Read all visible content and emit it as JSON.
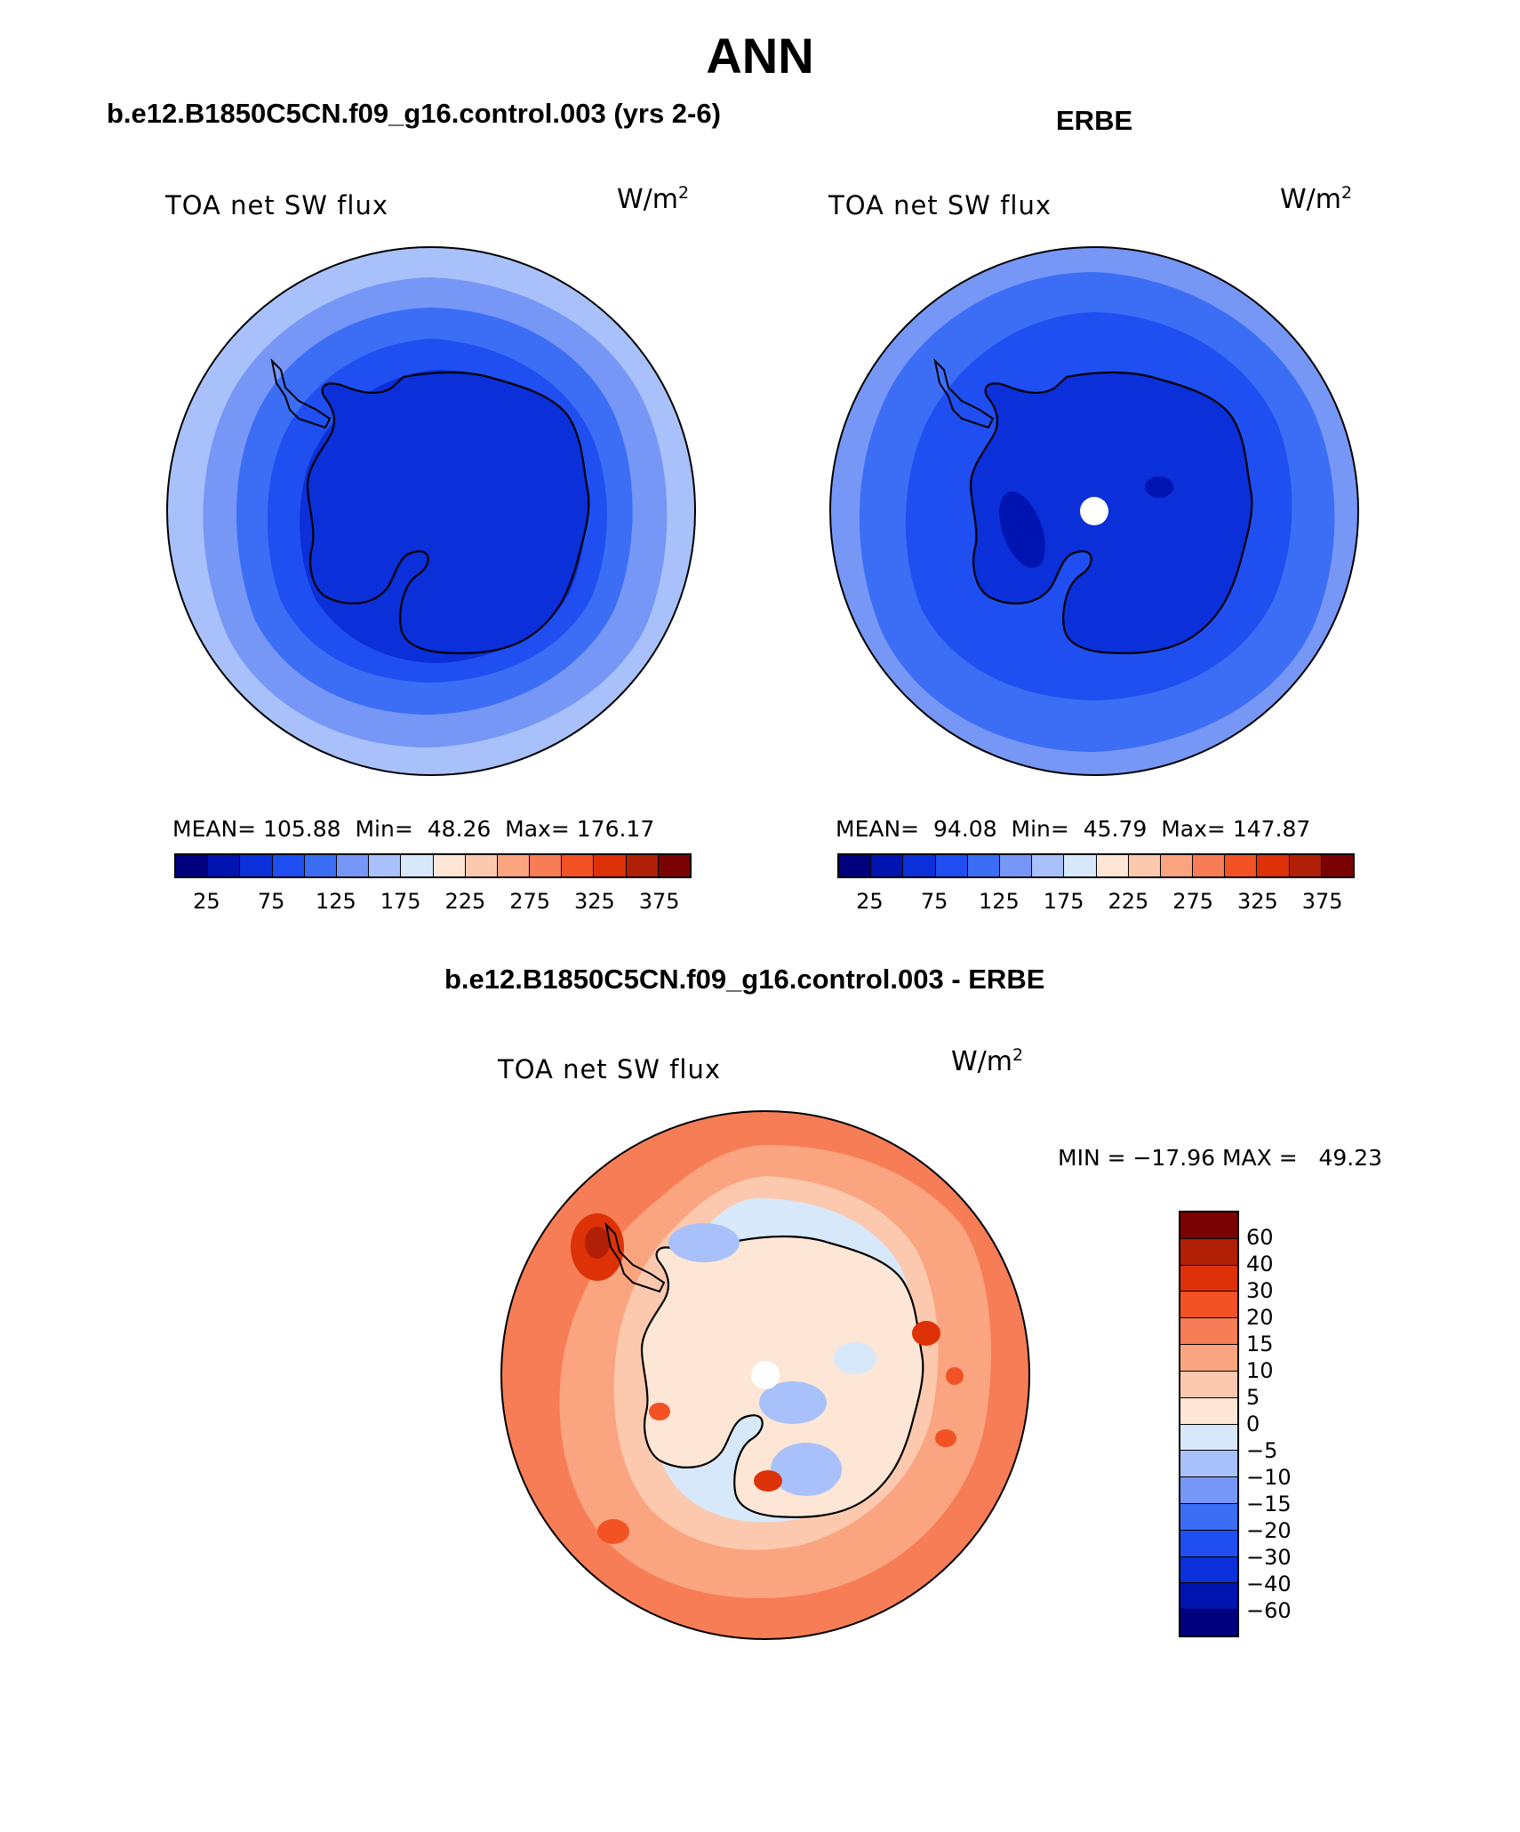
{
  "title": "ANN",
  "panels": {
    "model": {
      "title": "b.e12.B1850C5CN.f09_g16.control.003 (yrs 2-6)",
      "label": "TOA net SW flux",
      "units_base": "W/m",
      "units_exp": "2",
      "mean_label": "MEAN=",
      "mean": "105.88",
      "min_label": "Min=",
      "min": "48.26",
      "max_label": "Max=",
      "max": "176.17"
    },
    "obs": {
      "title": "ERBE",
      "label": "TOA net SW flux",
      "units_base": "W/m",
      "units_exp": "2",
      "mean_label": "MEAN=",
      "mean": "94.08",
      "min_label": "Min=",
      "min": "45.79",
      "max_label": "Max=",
      "max": "147.87"
    },
    "diff": {
      "title": "b.e12.B1850C5CN.f09_g16.control.003 - ERBE",
      "label": "TOA net SW flux",
      "units_base": "W/m",
      "units_exp": "2",
      "minmax": "MIN = −17.96 MAX =   49.23"
    }
  },
  "colorbars": {
    "abs_colors": [
      "#00007f",
      "#0014b0",
      "#0b2fd8",
      "#1f4ff0",
      "#3c6ef5",
      "#7797f7",
      "#a9c1fa",
      "#d8e8fb",
      "#fde6d5",
      "#fcc9ae",
      "#faa580",
      "#f67d55",
      "#f25224",
      "#dd3207",
      "#b11f07",
      "#7a0202"
    ],
    "abs_ticks": [
      "25",
      "75",
      "125",
      "175",
      "225",
      "275",
      "325",
      "375"
    ],
    "diff_colors": [
      "#7a0202",
      "#b11f07",
      "#dd3207",
      "#f25224",
      "#f67d55",
      "#faa580",
      "#fcc9ae",
      "#fde6d5",
      "#d8e8fb",
      "#a9c1fa",
      "#7797f7",
      "#3c6ef5",
      "#1f4ff0",
      "#0b2fd8",
      "#0014b0",
      "#00007f"
    ],
    "diff_ticks": [
      "60",
      "40",
      "30",
      "20",
      "15",
      "10",
      "5",
      "0",
      "−5",
      "−10",
      "−15",
      "−20",
      "−30",
      "−40",
      "−60"
    ]
  }
}
